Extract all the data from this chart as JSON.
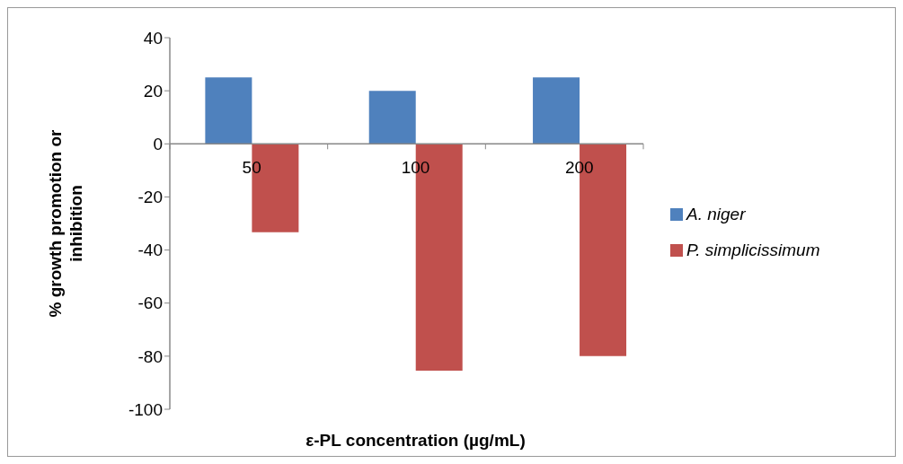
{
  "chart_data": {
    "type": "bar",
    "xlabel": "ε-PL concentration (µg/mL)",
    "ylabel": "% growth promotion or inhibition",
    "categories": [
      "50",
      "100",
      "200"
    ],
    "series": [
      {
        "name": "A. niger",
        "color": "#4f81bd",
        "values": [
          25,
          20,
          25
        ]
      },
      {
        "name": "P. simplicissimum",
        "color": "#c0504d",
        "values": [
          -33.3,
          -85.5,
          -80
        ]
      }
    ],
    "ylim": [
      -100,
      40
    ],
    "yticks": [
      -100,
      -80,
      -60,
      -40,
      -20,
      0,
      20,
      40
    ],
    "grid": false,
    "legend": "right"
  }
}
